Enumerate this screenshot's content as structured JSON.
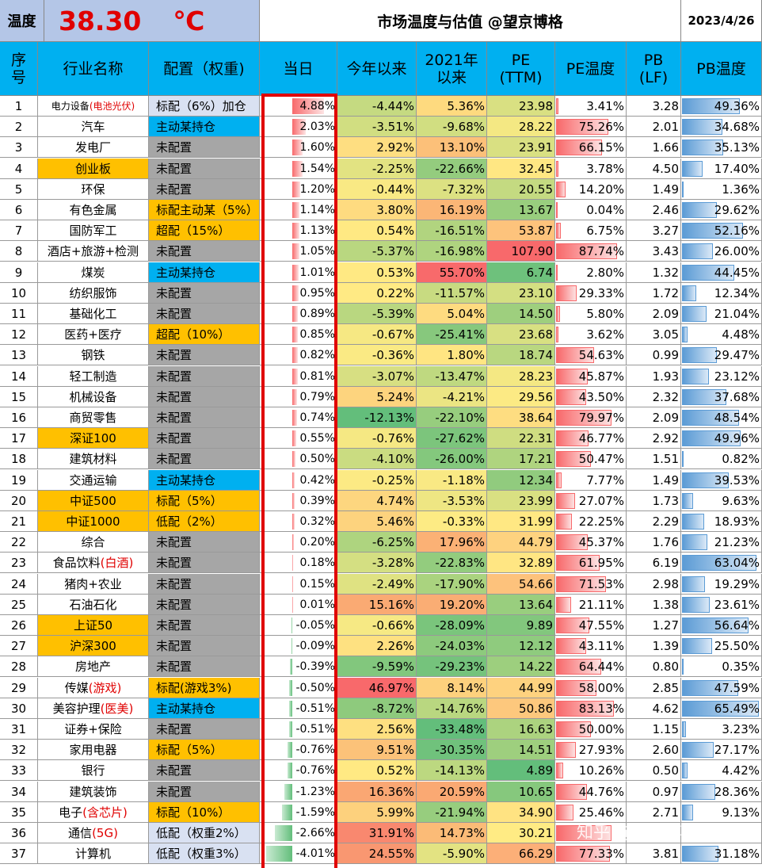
{
  "header": {
    "temp_label": "温度",
    "temp_value": "38.30",
    "temp_unit": "℃",
    "title": "市场温度与估值 @望京博格",
    "date": "2023/4/26"
  },
  "columns": {
    "idx": [
      "序",
      "号"
    ],
    "name": [
      "行业名称"
    ],
    "alloc": [
      "配置（权重)"
    ],
    "day": [
      "当日"
    ],
    "ytd": [
      "今年以来"
    ],
    "since2021": [
      "2021年",
      "以来"
    ],
    "pe": [
      "PE",
      "(TTM)"
    ],
    "pe_temp": [
      "PE温度"
    ],
    "pb": [
      "PB",
      "(LF)"
    ],
    "pb_temp": [
      "PB温度"
    ]
  },
  "colors": {
    "header_blue": "#00b0f0",
    "orange": "#ffc000",
    "grey": "#a6a6a6",
    "light_blue": "#d9e1f2",
    "temperature_red": "#e00000"
  },
  "rows": [
    {
      "idx": "1",
      "name": "电力设备",
      "name_red": "(电池光伏)",
      "name_small": true,
      "name_hl": false,
      "alloc": "标配（6%）加仓",
      "alloc_type": "l",
      "alloc_small": true,
      "day": "4.88%",
      "day_v": 4.88,
      "ytd": "-4.44%",
      "s21": "5.36%",
      "pe": "23.98",
      "pet": "3.41%",
      "pet_v": 3.41,
      "pb": "3.28",
      "pbt": "49.36%",
      "pbt_v": 49.36
    },
    {
      "idx": "2",
      "name": "汽车",
      "name_red": "",
      "name_hl": false,
      "alloc": "主动某持仓",
      "alloc_type": "b",
      "day": "2.03%",
      "day_v": 2.03,
      "ytd": "-3.51%",
      "s21": "-9.68%",
      "pe": "28.22",
      "pet": "75.26%",
      "pet_v": 75.26,
      "pb": "2.01",
      "pbt": "34.68%",
      "pbt_v": 34.68
    },
    {
      "idx": "3",
      "name": "发电厂",
      "name_red": "",
      "name_hl": false,
      "alloc": "未配置",
      "alloc_type": "g",
      "day": "1.60%",
      "day_v": 1.6,
      "ytd": "2.92%",
      "s21": "13.10%",
      "pe": "23.91",
      "pet": "66.15%",
      "pet_v": 66.15,
      "pb": "1.66",
      "pbt": "35.13%",
      "pbt_v": 35.13
    },
    {
      "idx": "4",
      "name": "创业板",
      "name_red": "",
      "name_hl": true,
      "alloc": "未配置",
      "alloc_type": "g",
      "day": "1.54%",
      "day_v": 1.54,
      "ytd": "-2.25%",
      "s21": "-22.66%",
      "pe": "32.45",
      "pet": "3.78%",
      "pet_v": 3.78,
      "pb": "4.50",
      "pbt": "17.40%",
      "pbt_v": 17.4
    },
    {
      "idx": "5",
      "name": "环保",
      "name_red": "",
      "name_hl": false,
      "alloc": "未配置",
      "alloc_type": "g",
      "day": "1.20%",
      "day_v": 1.2,
      "ytd": "-0.44%",
      "s21": "-7.32%",
      "pe": "20.55",
      "pet": "14.20%",
      "pet_v": 14.2,
      "pb": "1.49",
      "pbt": "1.36%",
      "pbt_v": 1.36
    },
    {
      "idx": "6",
      "name": "有色金属",
      "name_red": "",
      "name_hl": false,
      "alloc": "标配主动某（5%）",
      "alloc_type": "o",
      "alloc_small": true,
      "day": "1.14%",
      "day_v": 1.14,
      "ytd": "3.80%",
      "s21": "16.19%",
      "pe": "13.67",
      "pet": "0.04%",
      "pet_v": 0.04,
      "pb": "2.46",
      "pbt": "29.62%",
      "pbt_v": 29.62
    },
    {
      "idx": "7",
      "name": "国防军工",
      "name_red": "",
      "name_hl": false,
      "alloc": "超配（15%）",
      "alloc_type": "o",
      "day": "1.13%",
      "day_v": 1.13,
      "ytd": "0.54%",
      "s21": "-16.51%",
      "pe": "53.87",
      "pet": "6.75%",
      "pet_v": 6.75,
      "pb": "3.27",
      "pbt": "52.16%",
      "pbt_v": 52.16
    },
    {
      "idx": "8",
      "name": "酒店+旅游+检测",
      "name_red": "",
      "name_hl": false,
      "alloc": "未配置",
      "alloc_type": "g",
      "day": "1.05%",
      "day_v": 1.05,
      "ytd": "-5.37%",
      "s21": "-16.98%",
      "pe": "107.90",
      "pet": "87.74%",
      "pet_v": 87.74,
      "pb": "3.43",
      "pbt": "26.00%",
      "pbt_v": 26.0
    },
    {
      "idx": "9",
      "name": "煤炭",
      "name_red": "",
      "name_hl": false,
      "alloc": "主动某持仓",
      "alloc_type": "b",
      "day": "1.01%",
      "day_v": 1.01,
      "ytd": "0.53%",
      "s21": "55.70%",
      "pe": "6.74",
      "pet": "2.80%",
      "pet_v": 2.8,
      "pb": "1.32",
      "pbt": "44.45%",
      "pbt_v": 44.45
    },
    {
      "idx": "10",
      "name": "纺织服饰",
      "name_red": "",
      "name_hl": false,
      "alloc": "未配置",
      "alloc_type": "g",
      "day": "0.95%",
      "day_v": 0.95,
      "ytd": "0.22%",
      "s21": "-11.57%",
      "pe": "23.10",
      "pet": "29.33%",
      "pet_v": 29.33,
      "pb": "1.72",
      "pbt": "12.34%",
      "pbt_v": 12.34
    },
    {
      "idx": "11",
      "name": "基础化工",
      "name_red": "",
      "name_hl": false,
      "alloc": "未配置",
      "alloc_type": "g",
      "day": "0.89%",
      "day_v": 0.89,
      "ytd": "-5.39%",
      "s21": "5.04%",
      "pe": "14.50",
      "pet": "5.80%",
      "pet_v": 5.8,
      "pb": "2.09",
      "pbt": "21.04%",
      "pbt_v": 21.04
    },
    {
      "idx": "12",
      "name": "医药+医疗",
      "name_red": "",
      "name_hl": false,
      "alloc": "超配（10%）",
      "alloc_type": "o",
      "day": "0.85%",
      "day_v": 0.85,
      "ytd": "-0.67%",
      "s21": "-25.41%",
      "pe": "23.68",
      "pet": "3.62%",
      "pet_v": 3.62,
      "pb": "3.05",
      "pbt": "4.48%",
      "pbt_v": 4.48
    },
    {
      "idx": "13",
      "name": "钢铁",
      "name_red": "",
      "name_hl": false,
      "alloc": "未配置",
      "alloc_type": "g",
      "day": "0.82%",
      "day_v": 0.82,
      "ytd": "-0.36%",
      "s21": "1.80%",
      "pe": "18.74",
      "pet": "54.63%",
      "pet_v": 54.63,
      "pb": "0.99",
      "pbt": "29.47%",
      "pbt_v": 29.47
    },
    {
      "idx": "14",
      "name": "轻工制造",
      "name_red": "",
      "name_hl": false,
      "alloc": "未配置",
      "alloc_type": "g",
      "day": "0.81%",
      "day_v": 0.81,
      "ytd": "-3.07%",
      "s21": "-13.47%",
      "pe": "28.23",
      "pet": "45.87%",
      "pet_v": 45.87,
      "pb": "1.93",
      "pbt": "23.12%",
      "pbt_v": 23.12
    },
    {
      "idx": "15",
      "name": "机械设备",
      "name_red": "",
      "name_hl": false,
      "alloc": "未配置",
      "alloc_type": "g",
      "day": "0.79%",
      "day_v": 0.79,
      "ytd": "5.24%",
      "s21": "-4.21%",
      "pe": "29.56",
      "pet": "43.50%",
      "pet_v": 43.5,
      "pb": "2.32",
      "pbt": "37.68%",
      "pbt_v": 37.68
    },
    {
      "idx": "16",
      "name": "商贸零售",
      "name_red": "",
      "name_hl": false,
      "alloc": "未配置",
      "alloc_type": "g",
      "day": "0.74%",
      "day_v": 0.74,
      "ytd": "-12.13%",
      "s21": "-22.10%",
      "pe": "38.64",
      "pet": "79.97%",
      "pet_v": 79.97,
      "pb": "2.09",
      "pbt": "48.54%",
      "pbt_v": 48.54
    },
    {
      "idx": "17",
      "name": "深证100",
      "name_red": "",
      "name_hl": true,
      "alloc": "未配置",
      "alloc_type": "g",
      "day": "0.55%",
      "day_v": 0.55,
      "ytd": "-0.76%",
      "s21": "-27.62%",
      "pe": "22.31",
      "pet": "46.77%",
      "pet_v": 46.77,
      "pb": "2.92",
      "pbt": "49.96%",
      "pbt_v": 49.96
    },
    {
      "idx": "18",
      "name": "建筑材料",
      "name_red": "",
      "name_hl": false,
      "alloc": "未配置",
      "alloc_type": "g",
      "day": "0.50%",
      "day_v": 0.5,
      "ytd": "-4.10%",
      "s21": "-26.00%",
      "pe": "17.21",
      "pet": "50.47%",
      "pet_v": 50.47,
      "pb": "1.51",
      "pbt": "0.82%",
      "pbt_v": 0.82
    },
    {
      "idx": "19",
      "name": "交通运输",
      "name_red": "",
      "name_hl": false,
      "alloc": "主动某持仓",
      "alloc_type": "b",
      "day": "0.42%",
      "day_v": 0.42,
      "ytd": "-0.25%",
      "s21": "-1.18%",
      "pe": "12.34",
      "pet": "7.77%",
      "pet_v": 7.77,
      "pb": "1.49",
      "pbt": "39.53%",
      "pbt_v": 39.53
    },
    {
      "idx": "20",
      "name": "中证500",
      "name_red": "",
      "name_hl": true,
      "alloc": "标配（5%）",
      "alloc_type": "o",
      "day": "0.39%",
      "day_v": 0.39,
      "ytd": "4.74%",
      "s21": "-3.53%",
      "pe": "23.99",
      "pet": "27.07%",
      "pet_v": 27.07,
      "pb": "1.73",
      "pbt": "9.63%",
      "pbt_v": 9.63
    },
    {
      "idx": "21",
      "name": "中证1000",
      "name_red": "",
      "name_hl": true,
      "alloc": "低配（2%）",
      "alloc_type": "o",
      "day": "0.32%",
      "day_v": 0.32,
      "ytd": "5.46%",
      "s21": "-0.33%",
      "pe": "31.99",
      "pet": "22.25%",
      "pet_v": 22.25,
      "pb": "2.29",
      "pbt": "18.93%",
      "pbt_v": 18.93
    },
    {
      "idx": "22",
      "name": "综合",
      "name_red": "",
      "name_hl": false,
      "alloc": "未配置",
      "alloc_type": "g",
      "day": "0.20%",
      "day_v": 0.2,
      "ytd": "-6.25%",
      "s21": "17.96%",
      "pe": "44.79",
      "pet": "45.37%",
      "pet_v": 45.37,
      "pb": "1.76",
      "pbt": "21.23%",
      "pbt_v": 21.23
    },
    {
      "idx": "23",
      "name": "食品饮料",
      "name_red": "(白酒)",
      "name_hl": false,
      "alloc": "未配置",
      "alloc_type": "g",
      "day": "0.18%",
      "day_v": 0.18,
      "ytd": "-3.28%",
      "s21": "-22.83%",
      "pe": "32.89",
      "pet": "61.95%",
      "pet_v": 61.95,
      "pb": "6.19",
      "pbt": "63.04%",
      "pbt_v": 63.04
    },
    {
      "idx": "24",
      "name": "猪肉+农业",
      "name_red": "",
      "name_hl": false,
      "alloc": "未配置",
      "alloc_type": "g",
      "day": "0.15%",
      "day_v": 0.15,
      "ytd": "-2.49%",
      "s21": "-17.90%",
      "pe": "54.66",
      "pet": "71.53%",
      "pet_v": 71.53,
      "pb": "2.98",
      "pbt": "19.29%",
      "pbt_v": 19.29
    },
    {
      "idx": "25",
      "name": "石油石化",
      "name_red": "",
      "name_hl": false,
      "alloc": "未配置",
      "alloc_type": "g",
      "day": "0.01%",
      "day_v": 0.01,
      "ytd": "15.16%",
      "s21": "19.20%",
      "pe": "13.64",
      "pet": "21.11%",
      "pet_v": 21.11,
      "pb": "1.38",
      "pbt": "23.61%",
      "pbt_v": 23.61
    },
    {
      "idx": "26",
      "name": "上证50",
      "name_red": "",
      "name_hl": true,
      "alloc": "未配置",
      "alloc_type": "g",
      "day": "-0.05%",
      "day_v": -0.05,
      "ytd": "-0.66%",
      "s21": "-28.09%",
      "pe": "9.89",
      "pet": "47.55%",
      "pet_v": 47.55,
      "pb": "1.27",
      "pbt": "56.64%",
      "pbt_v": 56.64
    },
    {
      "idx": "27",
      "name": "沪深300",
      "name_red": "",
      "name_hl": true,
      "alloc": "未配置",
      "alloc_type": "g",
      "day": "-0.09%",
      "day_v": -0.09,
      "ytd": "2.26%",
      "s21": "-24.03%",
      "pe": "12.12",
      "pet": "43.11%",
      "pet_v": 43.11,
      "pb": "1.39",
      "pbt": "25.50%",
      "pbt_v": 25.5
    },
    {
      "idx": "28",
      "name": "房地产",
      "name_red": "",
      "name_hl": false,
      "alloc": "未配置",
      "alloc_type": "g",
      "alloc_small": true,
      "day": "-0.39%",
      "day_v": -0.39,
      "ytd": "-9.59%",
      "s21": "-29.23%",
      "pe": "14.22",
      "pet": "64.44%",
      "pet_v": 64.44,
      "pb": "0.80",
      "pbt": "0.35%",
      "pbt_v": 0.35
    },
    {
      "idx": "29",
      "name": "传媒",
      "name_red": "(游戏)",
      "name_hl": false,
      "alloc": "标配(游戏3%)",
      "alloc_type": "o",
      "day": "-0.50%",
      "day_v": -0.5,
      "ytd": "46.97%",
      "s21": "8.14%",
      "pe": "44.99",
      "pet": "58.00%",
      "pet_v": 58.0,
      "pb": "2.85",
      "pbt": "47.59%",
      "pbt_v": 47.59
    },
    {
      "idx": "30",
      "name": "美容护理",
      "name_red": "(医美)",
      "name_hl": false,
      "alloc": "主动某持仓",
      "alloc_type": "b",
      "day": "-0.51%",
      "day_v": -0.51,
      "ytd": "-8.72%",
      "s21": "-14.76%",
      "pe": "50.86",
      "pet": "83.13%",
      "pet_v": 83.13,
      "pb": "4.62",
      "pbt": "65.49%",
      "pbt_v": 65.49
    },
    {
      "idx": "31",
      "name": "证券+保险",
      "name_red": "",
      "name_hl": false,
      "alloc": "未配置",
      "alloc_type": "g",
      "day": "-0.51%",
      "day_v": -0.51,
      "ytd": "2.56%",
      "s21": "-33.48%",
      "pe": "16.63",
      "pet": "50.00%",
      "pet_v": 50.0,
      "pb": "1.15",
      "pbt": "3.23%",
      "pbt_v": 3.23
    },
    {
      "idx": "32",
      "name": "家用电器",
      "name_red": "",
      "name_hl": false,
      "alloc": "标配（5%）",
      "alloc_type": "o",
      "day": "-0.76%",
      "day_v": -0.76,
      "ytd": "9.51%",
      "s21": "-30.35%",
      "pe": "14.51",
      "pet": "27.93%",
      "pet_v": 27.93,
      "pb": "2.60",
      "pbt": "27.17%",
      "pbt_v": 27.17
    },
    {
      "idx": "33",
      "name": "银行",
      "name_red": "",
      "name_hl": false,
      "alloc": "未配置",
      "alloc_type": "g",
      "day": "-0.76%",
      "day_v": -0.76,
      "ytd": "0.52%",
      "s21": "-14.13%",
      "pe": "4.89",
      "pet": "10.26%",
      "pet_v": 10.26,
      "pb": "0.50",
      "pbt": "4.42%",
      "pbt_v": 4.42
    },
    {
      "idx": "34",
      "name": "建筑装饰",
      "name_red": "",
      "name_hl": false,
      "alloc": "未配置",
      "alloc_type": "g",
      "day": "-1.23%",
      "day_v": -1.23,
      "ytd": "16.36%",
      "s21": "20.59%",
      "pe": "10.65",
      "pet": "44.76%",
      "pet_v": 44.76,
      "pb": "0.97",
      "pbt": "28.36%",
      "pbt_v": 28.36
    },
    {
      "idx": "35",
      "name": "电子",
      "name_red": "(含芯片)",
      "name_hl": false,
      "alloc": "标配（10%）",
      "alloc_type": "o",
      "day": "-1.59%",
      "day_v": -1.59,
      "ytd": "5.99%",
      "s21": "-21.94%",
      "pe": "34.90",
      "pet": "25.46%",
      "pet_v": 25.46,
      "pb": "2.71",
      "pbt": "9.13%",
      "pbt_v": 9.13
    },
    {
      "idx": "36",
      "name": "通信",
      "name_red": "(5G)",
      "name_hl": false,
      "alloc": "低配（权重2%）",
      "alloc_type": "l",
      "day": "-2.66%",
      "day_v": -2.66,
      "ytd": "31.91%",
      "s21": "14.73%",
      "pe": "30.21",
      "pet": "",
      "pet_v": 79,
      "pb": "",
      "pbt": "",
      "pbt_v": 0
    },
    {
      "idx": "37",
      "name": "计算机",
      "name_red": "",
      "name_hl": false,
      "alloc": "低配（权重3%）",
      "alloc_type": "l",
      "day": "-4.01%",
      "day_v": -4.01,
      "ytd": "24.55%",
      "s21": "-5.90%",
      "pe": "66.29",
      "pet": "77.33%",
      "pet_v": 77.33,
      "pb": "3.81",
      "pbt": "31.18%",
      "pbt_v": 31.18
    }
  ],
  "watermark": "知乎 @望京博格"
}
